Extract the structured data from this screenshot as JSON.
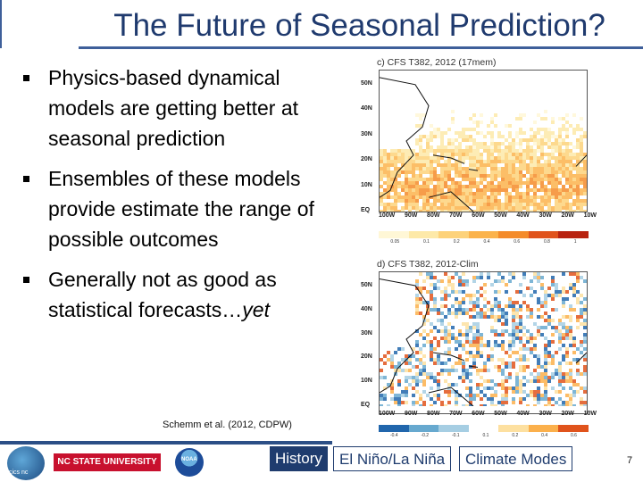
{
  "slide": {
    "title": "The Future of Seasonal Prediction?",
    "bullets": [
      {
        "text": "Physics-based dynamical models are getting better at seasonal prediction"
      },
      {
        "text": "Ensembles of these models provide estimate the range of possible outcomes"
      },
      {
        "text_main": "Generally not as good as statistical forecasts…",
        "text_emph": "yet"
      }
    ],
    "citation": "Schemm et al. (2012, CDPW)",
    "page_number": "7"
  },
  "figures": {
    "panel_c": {
      "title": "c) CFS T382, 2012 (17mem)",
      "y_ticks": [
        "50N",
        "40N",
        "30N",
        "20N",
        "10N",
        "EQ"
      ],
      "x_ticks": [
        "100W",
        "90W",
        "80W",
        "70W",
        "60W",
        "50W",
        "40W",
        "30W",
        "20W",
        "10W"
      ],
      "colorbar_labels": [
        "0.05",
        "0.1",
        "0.2",
        "0.4",
        "0.6",
        "0.8",
        "1"
      ],
      "colorbar_colors": [
        "#fff7d6",
        "#fde9a8",
        "#fdd27a",
        "#fbb34c",
        "#f48b2a",
        "#e0531c",
        "#b8220f"
      ]
    },
    "panel_d": {
      "title": "d) CFS T382, 2012-Clim",
      "y_ticks": [
        "50N",
        "40N",
        "30N",
        "20N",
        "10N",
        "EQ"
      ],
      "x_ticks": [
        "100W",
        "90W",
        "80W",
        "70W",
        "60W",
        "50W",
        "40W",
        "30W",
        "20W",
        "10W"
      ],
      "colorbar_labels": [
        "-0.4",
        "-0.2",
        "-0.1",
        "0.1",
        "0.2",
        "0.4",
        "0.6"
      ],
      "colorbar_colors": [
        "#2166ac",
        "#67a9cf",
        "#a6cee3",
        "#ffffff",
        "#fde0a0",
        "#fbb04c",
        "#e0531c"
      ]
    }
  },
  "footer": {
    "logo_cics": "cics nc",
    "logo_ncstate": "NC STATE UNIVERSITY",
    "logo_noaa": "NOAA",
    "nav": {
      "history": "History",
      "enso": "El Niño/La Niña",
      "modes": "Climate Modes"
    }
  }
}
